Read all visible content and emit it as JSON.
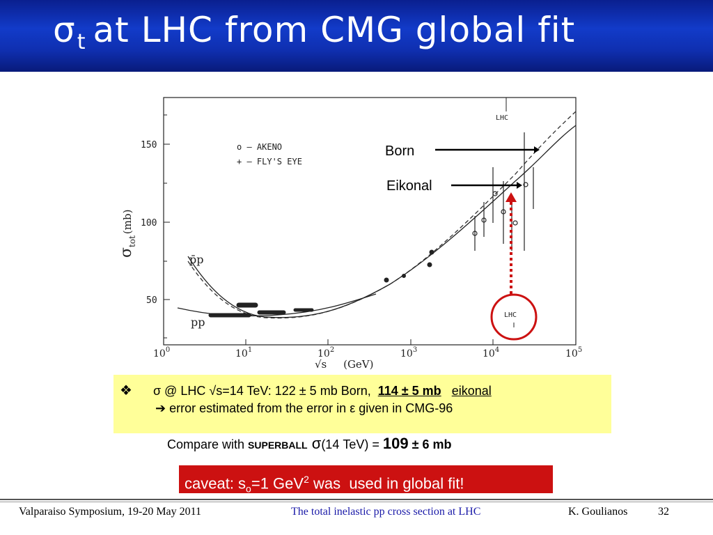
{
  "title": {
    "sigma": "σ",
    "sub": "t",
    "rest": "at LHC from CMG global fit"
  },
  "plot": {
    "ylabel_main": "σ",
    "ylabel_sub": "tot",
    "ylabel_unit": "(mb)",
    "xlabel": "√s     (GeV)",
    "y_ticks": [
      "150",
      "100",
      "50"
    ],
    "x_tick_base": "10",
    "x_tick_exps": [
      "0",
      "1",
      "2",
      "3",
      "4",
      "5"
    ],
    "legend_akeno": "o  – AKENO",
    "legend_flyseye": "+  – FLY'S EYE",
    "label_pbarp": "p̄p",
    "label_pp": "pp",
    "label_lhc_top": "LHC",
    "label_lhc_circle": "LHC"
  },
  "annotations": {
    "born": "Born",
    "eikonal": "Eikonal"
  },
  "bullet": {
    "symbol": "❖",
    "sigma": "σ",
    "text1": " @ LHC √s=14 TeV: 122 ± 5 mb Born,  ",
    "bold_value": "114 ± 5 mb",
    "eikonal": "eikonal",
    "arrow": "➔",
    "text2": " error estimated from the error in ",
    "epsilon": "ε",
    "text3": " given in CMG-96"
  },
  "compare": {
    "prefix": "Compare with ",
    "superball": "SUPERBALL",
    "sigma": " σ",
    "energy": "(14 TeV) = ",
    "value": "109",
    "err": " ± 6 mb"
  },
  "caveat": {
    "prefix": "caveat: s",
    "sub": "o",
    "mid": "=1 GeV",
    "sup": "2",
    "suffix": " was  used in global fit!"
  },
  "footer": {
    "left": "Valparaiso Symposium, 19-20 May 2011",
    "center": "The total inelastic pp cross section at LHC",
    "author": "K. Goulianos",
    "page": "32"
  },
  "colors": {
    "title_bg": "#123bc9",
    "footer_center": "#1a1aa8",
    "caveat_bg": "#cc1111",
    "box_bg": "#ffff99",
    "lhc_marker": "#cc1111"
  }
}
